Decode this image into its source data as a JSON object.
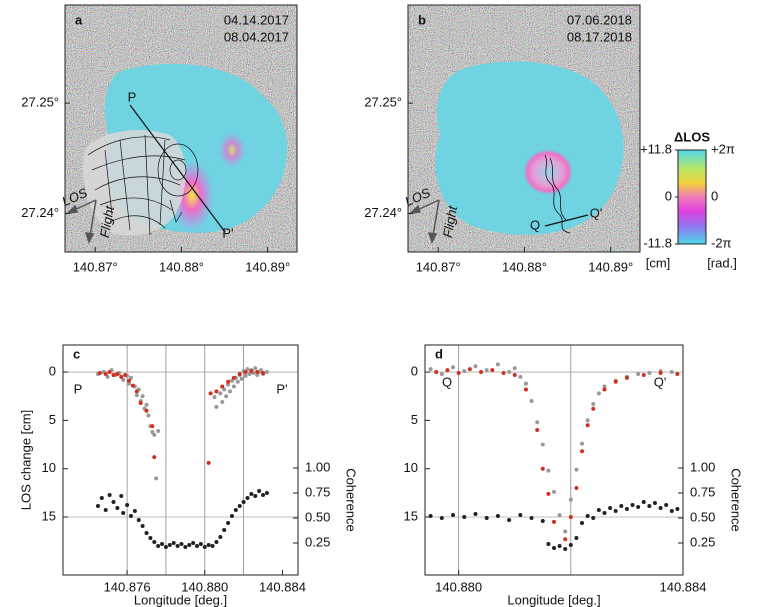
{
  "maps": [
    {
      "label": "a",
      "dates": [
        "04.14.2017",
        "08.04.2017"
      ],
      "annotations": [
        "P",
        "P'",
        "LOS",
        "Flight"
      ]
    },
    {
      "label": "b",
      "dates": [
        "07.06.2018",
        "08.17.2018"
      ],
      "annotations": [
        "Q",
        "Q'",
        "LOS",
        "Flight"
      ]
    }
  ],
  "map_axes": {
    "xlim": [
      140.8665,
      140.8934
    ],
    "ylim": [
      27.2365,
      27.2589
    ],
    "xticks": [
      {
        "value": 140.87,
        "label": "140.87°"
      },
      {
        "value": 140.88,
        "label": "140.88°"
      },
      {
        "value": 140.89,
        "label": "140.89°"
      }
    ],
    "yticks": [
      {
        "value": 27.25,
        "label": "27.25°"
      },
      {
        "value": 27.24,
        "label": "27.24°"
      }
    ]
  },
  "colorbar": {
    "title": "ΔLOS",
    "lim": [
      -11.8,
      11.8
    ],
    "cm_labels": [
      {
        "value": 11.8,
        "label": "+11.8"
      },
      0,
      {
        "value": -11.8,
        "label": "-11.8"
      }
    ],
    "cm_unit": "[cm]",
    "rad_labels": [
      "+2π",
      "0",
      "-2π"
    ],
    "rad_unit": "[rad.]"
  },
  "chart_data": [
    {
      "type": "scatter",
      "label": "c",
      "ylabel": "LOS change [cm]",
      "y2label": "Coherence",
      "xlabel": "Longitude [deg.]",
      "xlim": [
        140.8727,
        140.8848
      ],
      "xticks": [
        140.876,
        {
          "value": 140.88,
          "label": "140.880"
        },
        140.884
      ],
      "ylim": [
        21,
        -2.8
      ],
      "yticks": [
        0,
        5,
        10,
        15
      ],
      "y2lim": [
        -0.07,
        2.23
      ],
      "y2ticks": [
        {
          "value": 1,
          "label": "1.00"
        },
        0.75,
        {
          "value": 0.5,
          "label": "0.50"
        },
        0.25
      ],
      "xgrid": [
        140.876,
        140.878,
        140.88,
        140.882
      ],
      "ygrid": [
        0,
        15
      ],
      "annotations": [
        "P",
        "P'"
      ],
      "series": [
        {
          "color": "#999999",
          "x": [
            140.8745,
            140.8748,
            140.875,
            140.8752,
            140.8754,
            140.8756,
            140.8758,
            140.876,
            140.8761,
            140.8762,
            140.8764,
            140.8765,
            140.8766,
            140.8767,
            140.8768,
            140.8769,
            140.877,
            140.8771,
            140.8772,
            140.8773,
            140.8774,
            140.8775,
            140.8776,
            140.8805,
            140.8806,
            140.8808,
            140.8809,
            140.881,
            140.8811,
            140.8812,
            140.8813,
            140.8814,
            140.8815,
            140.8816,
            140.8817,
            140.8818,
            140.8819,
            140.882,
            140.8821,
            140.8822,
            140.8823,
            140.8824,
            140.8825,
            140.8826,
            140.8827,
            140.8828,
            140.8829,
            140.883,
            140.8832
          ],
          "values": [
            0.2,
            0.0,
            0.5,
            -0.2,
            0.3,
            0.1,
            0.8,
            0.4,
            1.2,
            0.6,
            1.5,
            2.4,
            1.8,
            3.0,
            2.5,
            3.8,
            3.4,
            4.5,
            5.6,
            6.2,
            6.5,
            11.0,
            6.1,
            2.6,
            3.6,
            2.2,
            3.1,
            1.8,
            2.5,
            1.3,
            2.0,
            0.9,
            1.5,
            0.6,
            1.0,
            0.3,
            0.7,
            -0.1,
            0.4,
            -0.3,
            0.2,
            -0.2,
            0.1,
            -0.4,
            0.3,
            0.0,
            -0.2,
            0.2,
            0.0
          ]
        },
        {
          "color": "#d03020",
          "x": [
            140.8746,
            140.8749,
            140.8751,
            140.8753,
            140.8755,
            140.8757,
            140.8759,
            140.8761,
            140.8763,
            140.8765,
            140.8767,
            140.877,
            140.8773,
            140.8774,
            140.8802,
            140.8803,
            140.8806,
            140.8809,
            140.8812,
            140.8815,
            140.8818,
            140.8821,
            140.8824,
            140.8827,
            140.883
          ],
          "values": [
            0.1,
            0.2,
            0.0,
            0.3,
            0.2,
            0.5,
            0.3,
            0.9,
            1.4,
            2.0,
            3.2,
            4.0,
            5.6,
            8.8,
            9.4,
            2.2,
            2.0,
            1.5,
            1.0,
            0.6,
            0.2,
            0.0,
            -0.1,
            0.0,
            0.1
          ]
        },
        {
          "color": "#222222",
          "axis": "y2",
          "x": [
            140.8745,
            140.8747,
            140.8749,
            140.8751,
            140.8753,
            140.8755,
            140.8757,
            140.8758,
            140.876,
            140.8762,
            140.8764,
            140.8766,
            140.8768,
            140.877,
            140.8772,
            140.8774,
            140.8776,
            140.8778,
            140.878,
            140.8782,
            140.8784,
            140.8786,
            140.8788,
            140.879,
            140.8792,
            140.8794,
            140.8796,
            140.8798,
            140.88,
            140.8802,
            140.8804,
            140.8806,
            140.8808,
            140.881,
            140.8812,
            140.8814,
            140.8816,
            140.8818,
            140.882,
            140.8822,
            140.8824,
            140.8826,
            140.8828,
            140.883,
            140.8832
          ],
          "values": [
            0.62,
            0.7,
            0.58,
            0.73,
            0.66,
            0.6,
            0.72,
            0.55,
            0.63,
            0.52,
            0.57,
            0.48,
            0.42,
            0.35,
            0.3,
            0.26,
            0.22,
            0.24,
            0.21,
            0.23,
            0.25,
            0.22,
            0.24,
            0.21,
            0.23,
            0.25,
            0.22,
            0.24,
            0.21,
            0.23,
            0.22,
            0.26,
            0.31,
            0.38,
            0.45,
            0.52,
            0.58,
            0.62,
            0.66,
            0.7,
            0.74,
            0.72,
            0.77,
            0.73,
            0.75
          ]
        }
      ]
    },
    {
      "type": "scatter",
      "label": "d",
      "y2label": "Coherence",
      "xlabel": "Longitude [deg.]",
      "xlim": [
        140.8794,
        140.884
      ],
      "xticks": [
        {
          "value": 140.88,
          "label": "140.880"
        },
        140.884
      ],
      "ylim": [
        21,
        -2.8
      ],
      "yticks": [
        0,
        5,
        10,
        15
      ],
      "y2lim": [
        -0.07,
        2.23
      ],
      "y2ticks": [
        {
          "value": 1,
          "label": "1.00"
        },
        0.75,
        {
          "value": 0.5,
          "label": "0.50"
        },
        0.25
      ],
      "xgrid": [
        140.88,
        140.882
      ],
      "ygrid": [
        0,
        15
      ],
      "annotations": [
        "Q",
        "Q'"
      ],
      "series": [
        {
          "color": "#999999",
          "x": [
            140.8795,
            140.8797,
            140.8799,
            140.8801,
            140.8803,
            140.8805,
            140.8807,
            140.8809,
            140.881,
            140.8811,
            140.8812,
            140.8813,
            140.8814,
            140.8815,
            140.8816,
            140.8817,
            140.8818,
            140.8819,
            140.882,
            140.8821,
            140.8822,
            140.8823,
            140.8824,
            140.8825,
            140.8826,
            140.8828,
            140.883,
            140.8832,
            140.8834,
            140.8836,
            140.8838
          ],
          "values": [
            -0.3,
            0.2,
            -0.5,
            -0.1,
            -0.6,
            -0.2,
            -0.8,
            0.0,
            -0.4,
            0.5,
            1.2,
            3.0,
            5.2,
            7.5,
            10.2,
            12.4,
            14.8,
            16.5,
            13.2,
            10.1,
            7.4,
            5.0,
            3.3,
            2.2,
            1.5,
            0.9,
            0.5,
            0.2,
            0.1,
            -0.1,
            0.0
          ]
        },
        {
          "color": "#d03020",
          "x": [
            140.8796,
            140.8798,
            140.88,
            140.8802,
            140.8804,
            140.8806,
            140.8808,
            140.881,
            140.8812,
            140.8814,
            140.8815,
            140.8816,
            140.8817,
            140.8819,
            140.882,
            140.8821,
            140.8822,
            140.8823,
            140.8824,
            140.8826,
            140.8828,
            140.883,
            140.8833,
            140.8836,
            140.8839
          ],
          "values": [
            0.0,
            -0.2,
            0.1,
            -0.3,
            0.0,
            -0.2,
            0.1,
            0.3,
            1.8,
            6.0,
            10.0,
            12.6,
            15.5,
            17.3,
            15.0,
            12.0,
            8.2,
            5.5,
            3.8,
            1.8,
            1.0,
            0.6,
            0.3,
            0.1,
            0.2
          ]
        },
        {
          "color": "#222222",
          "axis": "y2",
          "x": [
            140.8795,
            140.8797,
            140.8799,
            140.8801,
            140.8803,
            140.8805,
            140.8807,
            140.8809,
            140.8811,
            140.8813,
            140.8815,
            140.8816,
            140.8817,
            140.8818,
            140.8819,
            140.882,
            140.8821,
            140.8822,
            140.8823,
            140.8824,
            140.8825,
            140.8826,
            140.8827,
            140.8828,
            140.8829,
            140.883,
            140.8831,
            140.8832,
            140.8833,
            140.8834,
            140.8835,
            140.8836,
            140.8837,
            140.8838,
            140.8839
          ],
          "values": [
            0.52,
            0.5,
            0.53,
            0.51,
            0.54,
            0.5,
            0.52,
            0.48,
            0.53,
            0.5,
            0.47,
            0.24,
            0.2,
            0.22,
            0.19,
            0.23,
            0.3,
            0.45,
            0.52,
            0.5,
            0.58,
            0.55,
            0.6,
            0.57,
            0.62,
            0.59,
            0.63,
            0.61,
            0.66,
            0.62,
            0.65,
            0.6,
            0.63,
            0.57,
            0.59
          ]
        }
      ]
    }
  ]
}
